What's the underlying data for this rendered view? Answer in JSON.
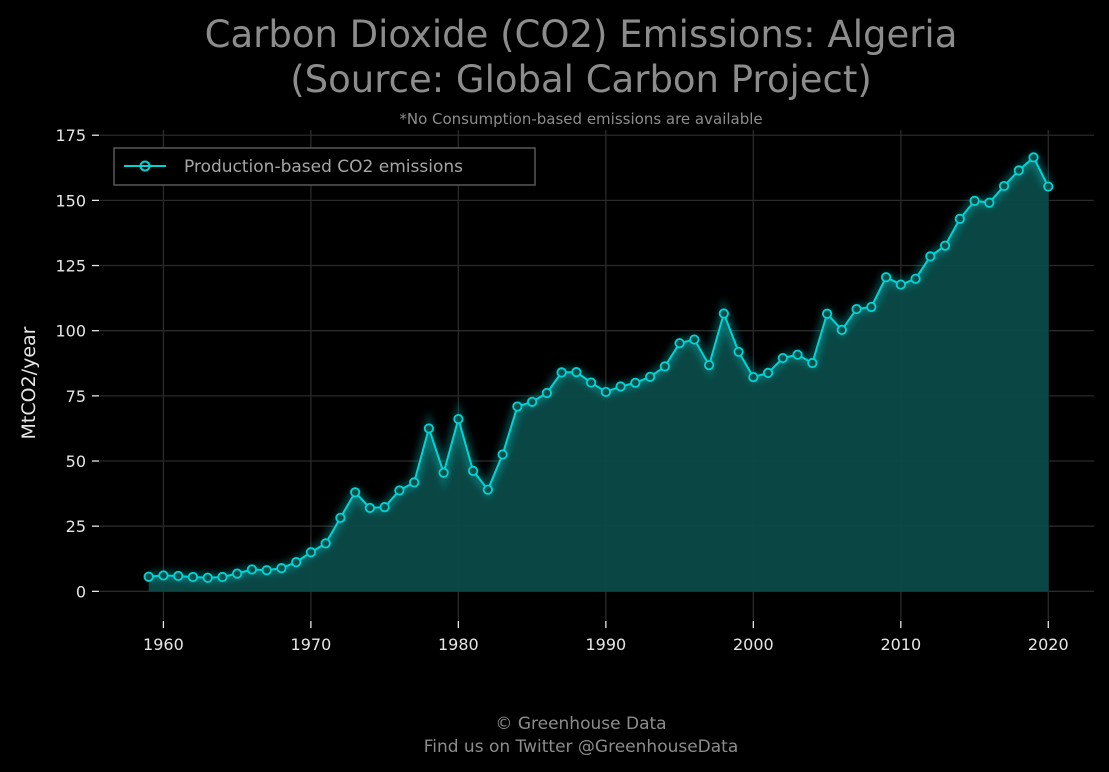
{
  "chart_data": {
    "type": "area",
    "title": "Carbon Dioxide (CO2) Emissions: Algeria",
    "title_line2": "(Source: Global Carbon Project)",
    "subtitle": "*No Consumption-based emissions are available",
    "xlabel": "",
    "ylabel": "MtCO2/year",
    "xlim": [
      1955.7,
      2023.1
    ],
    "ylim": [
      -11,
      177
    ],
    "x_ticks": [
      1960,
      1970,
      1980,
      1990,
      2000,
      2010,
      2020
    ],
    "y_ticks": [
      0,
      25,
      50,
      75,
      100,
      125,
      150,
      175
    ],
    "grid": true,
    "legend_position": "top-left",
    "series": [
      {
        "name": "Production-based CO2 emissions",
        "color": "#00d5d5",
        "x": [
          1959,
          1960,
          1961,
          1962,
          1963,
          1964,
          1965,
          1966,
          1967,
          1968,
          1969,
          1970,
          1971,
          1972,
          1973,
          1974,
          1975,
          1976,
          1977,
          1978,
          1979,
          1980,
          1981,
          1982,
          1983,
          1984,
          1985,
          1986,
          1987,
          1988,
          1989,
          1990,
          1991,
          1992,
          1993,
          1994,
          1995,
          1996,
          1997,
          1998,
          1999,
          2000,
          2001,
          2002,
          2003,
          2004,
          2005,
          2006,
          2007,
          2008,
          2009,
          2010,
          2011,
          2012,
          2013,
          2014,
          2015,
          2016,
          2017,
          2018,
          2019,
          2020
        ],
        "values": [
          5.6,
          6.1,
          5.9,
          5.5,
          5.2,
          5.5,
          6.8,
          8.4,
          8.1,
          8.9,
          11.2,
          15.0,
          18.4,
          28.2,
          38.0,
          32.0,
          32.3,
          38.7,
          41.8,
          62.5,
          45.5,
          66.1,
          46.2,
          39.0,
          52.5,
          70.9,
          72.7,
          76.1,
          84.0,
          84.1,
          80.1,
          76.5,
          78.6,
          80.0,
          82.3,
          86.3,
          95.2,
          96.6,
          86.8,
          106.6,
          91.9,
          82.2,
          83.8,
          89.5,
          90.8,
          87.6,
          106.5,
          100.3,
          108.3,
          109.1,
          120.5,
          117.7,
          119.9,
          128.5,
          132.6,
          142.9,
          149.8,
          149.1,
          155.5,
          161.5,
          166.5,
          155.3
        ]
      }
    ]
  },
  "footer": {
    "copyright": "© Greenhouse Data",
    "twitter": "Find us on Twitter @GreenhouseData"
  }
}
